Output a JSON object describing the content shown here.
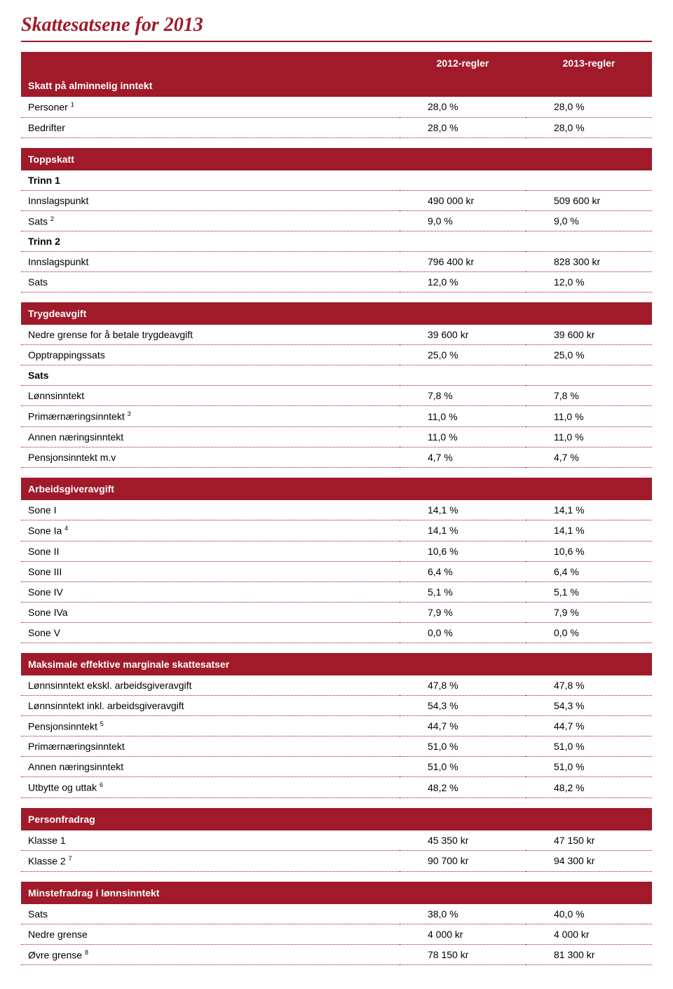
{
  "title": "Skattesatsene for 2013",
  "colors": {
    "accent": "#a01a2a",
    "header_text": "#ffffff",
    "body_text": "#000000",
    "row_border": "#a01a2a",
    "background": "#ffffff"
  },
  "typography": {
    "title_family": "Georgia serif italic",
    "title_fontsize_pt": 21,
    "body_family": "Arial",
    "body_fontsize_pt": 10.5,
    "header_fontsize_pt": 10.5
  },
  "columns": {
    "col1": "2012-regler",
    "col2": "2013-regler"
  },
  "sections": [
    {
      "header": "Skatt på alminnelig inntekt",
      "rows": [
        {
          "label": "Personer",
          "sup": "1",
          "v1": "28,0 %",
          "v2": "28,0 %"
        },
        {
          "label": "Bedrifter",
          "v1": "28,0 %",
          "v2": "28,0 %"
        }
      ]
    },
    {
      "header": "Toppskatt",
      "rows": [
        {
          "label": "Trinn 1",
          "bold": true,
          "v1": "",
          "v2": ""
        },
        {
          "label": "Innslagspunkt",
          "v1": "490 000 kr",
          "v2": "509 600 kr"
        },
        {
          "label": "Sats",
          "sup": "2",
          "v1": "9,0 %",
          "v2": "9,0 %"
        },
        {
          "label": "Trinn 2",
          "bold": true,
          "v1": "",
          "v2": ""
        },
        {
          "label": "Innslagspunkt",
          "v1": "796 400 kr",
          "v2": "828 300 kr"
        },
        {
          "label": "Sats",
          "v1": "12,0 %",
          "v2": "12,0 %"
        }
      ]
    },
    {
      "header": "Trygdeavgift",
      "rows": [
        {
          "label": "Nedre grense for å betale trygdeavgift",
          "v1": "39 600 kr",
          "v2": "39 600 kr"
        },
        {
          "label": "Opptrappingssats",
          "v1": "25,0 %",
          "v2": "25,0 %"
        },
        {
          "label": "Sats",
          "bold": true,
          "v1": "",
          "v2": ""
        },
        {
          "label": "Lønnsinntekt",
          "v1": "7,8 %",
          "v2": "7,8 %"
        },
        {
          "label": "Primærnæringsinntekt",
          "sup": "3",
          "v1": "11,0 %",
          "v2": "11,0 %"
        },
        {
          "label": "Annen næringsinntekt",
          "v1": "11,0 %",
          "v2": "11,0 %"
        },
        {
          "label": "Pensjonsinntekt m.v",
          "v1": "4,7 %",
          "v2": "4,7 %"
        }
      ]
    },
    {
      "header": "Arbeidsgiveravgift",
      "rows": [
        {
          "label": "Sone I",
          "v1": "14,1 %",
          "v2": "14,1 %"
        },
        {
          "label": "Sone Ia",
          "sup": "4",
          "v1": "14,1 %",
          "v2": "14,1 %"
        },
        {
          "label": "Sone II",
          "v1": "10,6 %",
          "v2": "10,6 %"
        },
        {
          "label": "Sone III",
          "v1": "6,4 %",
          "v2": "6,4 %"
        },
        {
          "label": "Sone IV",
          "v1": "5,1 %",
          "v2": "5,1 %"
        },
        {
          "label": "Sone IVa",
          "v1": "7,9 %",
          "v2": "7,9 %"
        },
        {
          "label": "Sone V",
          "v1": "0,0 %",
          "v2": "0,0 %"
        }
      ]
    },
    {
      "header": "Maksimale effektive marginale skattesatser",
      "rows": [
        {
          "label": "Lønnsinntekt ekskl. arbeidsgiveravgift",
          "v1": "47,8 %",
          "v2": "47,8 %"
        },
        {
          "label": "Lønnsinntekt inkl. arbeidsgiveravgift",
          "v1": "54,3 %",
          "v2": "54,3 %"
        },
        {
          "label": "Pensjonsinntekt",
          "sup": "5",
          "v1": "44,7 %",
          "v2": "44,7 %"
        },
        {
          "label": "Primærnæringsinntekt",
          "v1": "51,0 %",
          "v2": "51,0 %"
        },
        {
          "label": "Annen næringsinntekt",
          "v1": "51,0 %",
          "v2": "51,0 %"
        },
        {
          "label": "Utbytte og uttak",
          "sup": "6",
          "v1": "48,2 %",
          "v2": "48,2 %"
        }
      ]
    },
    {
      "header": "Personfradrag",
      "rows": [
        {
          "label": "Klasse 1",
          "v1": "45 350 kr",
          "v2": "47 150 kr"
        },
        {
          "label": "Klasse 2",
          "sup": "7",
          "v1": "90 700 kr",
          "v2": "94 300 kr"
        }
      ]
    },
    {
      "header": "Minstefradrag i lønnsinntekt",
      "rows": [
        {
          "label": "Sats",
          "v1": "38,0 %",
          "v2": "40,0 %"
        },
        {
          "label": "Nedre grense",
          "v1": "4 000 kr",
          "v2": "4 000 kr"
        },
        {
          "label": "Øvre grense",
          "sup": "8",
          "v1": "78 150 kr",
          "v2": "81 300 kr"
        }
      ]
    }
  ]
}
